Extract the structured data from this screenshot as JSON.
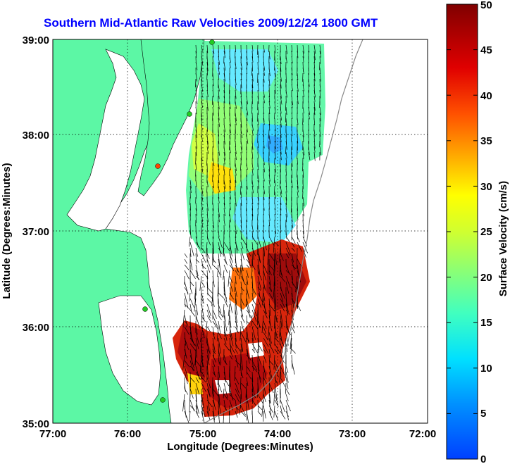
{
  "title": "Southern Mid-Atlantic Raw Velocities 2009/12/24 1800 GMT",
  "xlabel": "Longitude (Degrees:Minutes)",
  "ylabel": "Latitude (Degrees:Minutes)",
  "colorbar_label": "Surface Velocity (cm/s)",
  "x_ticks": [
    "77:00",
    "76:00",
    "75:00",
    "74:00",
    "73:00",
    "72:00"
  ],
  "y_ticks": [
    "39:00",
    "38:00",
    "37:00",
    "36:00",
    "35:00"
  ],
  "colorbar_ticks": [
    "0",
    "5",
    "10",
    "15",
    "20",
    "25",
    "30",
    "35",
    "40",
    "45",
    "50"
  ],
  "map_extent": {
    "lon": [
      -77,
      -72
    ],
    "lat": [
      35,
      39
    ]
  },
  "colorbar_range": [
    0,
    50
  ],
  "grid": true,
  "colors": {
    "land": "#5cf7a5",
    "water": "#ffffff",
    "title": "#0000ff",
    "station_marker": "#22cc22",
    "station_marker_alt": "#ff4400"
  }
}
